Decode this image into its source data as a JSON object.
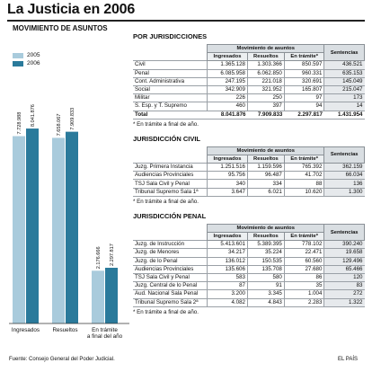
{
  "title": "La Justicia en 2006",
  "source": "Fuente: Consejo General del Poder Judicial.",
  "brand": "EL PAÍS",
  "colors": {
    "2005": "#a9cbdc",
    "2006": "#2a7a9b",
    "header": "#d9dee2",
    "sentencias": "#e6e9ec"
  },
  "chart_data": {
    "type": "bar",
    "title": "MOVIMIENTO DE ASUNTOS",
    "categories": [
      "Ingresados",
      "Resueltos",
      "En trámite a final del año"
    ],
    "series": [
      {
        "name": "2005",
        "values": [
          7728988,
          7658067,
          2176666
        ],
        "labels": [
          "7.728.988",
          "7.658.067",
          "2.176.666"
        ]
      },
      {
        "name": "2006",
        "values": [
          8041876,
          7909833,
          2297817
        ],
        "labels": [
          "8.041.876",
          "7.909.833",
          "2.297.817"
        ]
      }
    ],
    "ylim": [
      0,
      8600000
    ],
    "legend": "top-left",
    "grid": false
  },
  "tables": [
    {
      "title": "POR JURISDICCIONES",
      "group_header": "Movimiento de asuntos",
      "sentencias_header": "Sentencias",
      "columns": [
        "Ingresados",
        "Resueltos",
        "En trámite*"
      ],
      "rows": [
        {
          "name": "Civil",
          "values": [
            "1.365.128",
            "1.303.366",
            "850.597",
            "436.521"
          ]
        },
        {
          "name": "Penal",
          "values": [
            "6.085.958",
            "6.062.850",
            "960.331",
            "635.153"
          ]
        },
        {
          "name": "Cont. Administrativa",
          "values": [
            "247.195",
            "221.018",
            "320.691",
            "145.049"
          ]
        },
        {
          "name": "Social",
          "values": [
            "342.909",
            "321.952",
            "165.807",
            "215.047"
          ]
        },
        {
          "name": "Militar",
          "values": [
            "226",
            "250",
            "97",
            "173"
          ]
        },
        {
          "name": "S. Esp. y T. Supremo",
          "values": [
            "460",
            "397",
            "94",
            "14"
          ]
        }
      ],
      "total": {
        "name": "Total",
        "values": [
          "8.041.876",
          "7.909.833",
          "2.297.817",
          "1.431.954"
        ]
      },
      "note": "* En trámite a final de año."
    },
    {
      "title": "JURISDICCIÓN CIVIL",
      "group_header": "Movimiento de asuntos",
      "sentencias_header": "Sentencias",
      "columns": [
        "Ingresados",
        "Resueltos",
        "En trámite*"
      ],
      "rows": [
        {
          "name": "Juzg. Primera Instancia",
          "values": [
            "1.251.516",
            "1.159.596",
            "765.392",
            "362.159"
          ]
        },
        {
          "name": "Audiencias Provinciales",
          "values": [
            "95.756",
            "96.487",
            "41.702",
            "66.034"
          ]
        },
        {
          "name": "TSJ Sala Civil y Penal",
          "values": [
            "340",
            "334",
            "88",
            "136"
          ]
        },
        {
          "name": "Tribunal Supremo Sala 1ª",
          "values": [
            "3.647",
            "6.021",
            "10.620",
            "1.300"
          ]
        }
      ],
      "note": "* En trámite a final de año."
    },
    {
      "title": "JURISDICCIÓN PENAL",
      "group_header": "Movimiento de asuntos",
      "sentencias_header": "Sentencias",
      "columns": [
        "Ingresados",
        "Resueltos",
        "En trámite*"
      ],
      "rows": [
        {
          "name": "Juzg. de Instrucción",
          "values": [
            "5.413.601",
            "5.389.395",
            "778.102",
            "390.240"
          ]
        },
        {
          "name": "Juzg. de Menores",
          "values": [
            "34.217",
            "35.224",
            "22.471",
            "19.658"
          ]
        },
        {
          "name": "Juzg. de lo Penal",
          "values": [
            "136.012",
            "150.535",
            "60.560",
            "129.496"
          ]
        },
        {
          "name": "Audiencias Provinciales",
          "values": [
            "135.606",
            "135.708",
            "27.680",
            "65.466"
          ]
        },
        {
          "name": "TSJ Sala Civil y Penal",
          "values": [
            "583",
            "580",
            "86",
            "120"
          ]
        },
        {
          "name": "Juzg. Central de lo Penal",
          "values": [
            "87",
            "91",
            "35",
            "83"
          ]
        },
        {
          "name": "Aud. Nacional Sala Penal",
          "values": [
            "3.200",
            "3.345",
            "1.004",
            "272"
          ]
        },
        {
          "name": "Tribunal Supremo Sala 2ª",
          "values": [
            "4.082",
            "4.843",
            "2.283",
            "1.322"
          ]
        }
      ],
      "note": "* En trámite a final de año."
    }
  ]
}
